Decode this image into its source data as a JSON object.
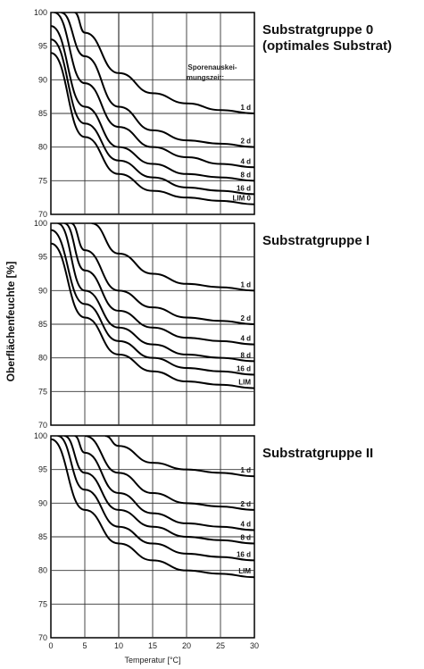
{
  "ylabel": "Oberflächenfeuchte [%]",
  "xlabel": "Temperatur [°C]",
  "chart_data": [
    {
      "type": "line",
      "title": "Substratgruppe 0",
      "subtitle": "(optimales Substrat)",
      "annotation": "Sporenauskei-mungszeit:",
      "xlim": [
        0,
        30
      ],
      "ylim": [
        70,
        100
      ],
      "x_ticks": [
        "0",
        "5",
        "10",
        "15",
        "20",
        "25",
        "30"
      ],
      "y_ticks": [
        "70",
        "75",
        "80",
        "85",
        "90",
        "95",
        "100"
      ],
      "series": [
        {
          "name": "1 d",
          "x": [
            3.5,
            5,
            10,
            15,
            20,
            25,
            30
          ],
          "y": [
            100,
            97,
            91,
            88,
            86.5,
            85.5,
            85
          ]
        },
        {
          "name": "2 d",
          "x": [
            1.5,
            5,
            10,
            15,
            20,
            25,
            30
          ],
          "y": [
            100,
            93.5,
            86,
            82.5,
            81,
            80.5,
            80
          ]
        },
        {
          "name": "4 d",
          "x": [
            0.5,
            5,
            10,
            15,
            20,
            25,
            30
          ],
          "y": [
            100,
            89.5,
            83,
            80,
            78.5,
            77.5,
            77
          ]
        },
        {
          "name": "8 d",
          "x": [
            0,
            5,
            10,
            15,
            20,
            25,
            30
          ],
          "y": [
            98,
            86,
            80,
            77.5,
            76,
            75.5,
            75
          ]
        },
        {
          "name": "16 d",
          "x": [
            0,
            5,
            10,
            15,
            20,
            25,
            30
          ],
          "y": [
            96,
            83.5,
            78,
            75.5,
            74,
            73.5,
            73
          ]
        },
        {
          "name": "LIM 0",
          "x": [
            0,
            5,
            10,
            15,
            20,
            25,
            30
          ],
          "y": [
            94,
            81.5,
            76,
            73.5,
            72.5,
            72,
            71.5
          ]
        }
      ]
    },
    {
      "type": "line",
      "title": "Substratgruppe I",
      "xlim": [
        0,
        30
      ],
      "ylim": [
        70,
        100
      ],
      "x_ticks": [
        "0",
        "5",
        "10",
        "15",
        "20",
        "25",
        "30"
      ],
      "y_ticks": [
        "70",
        "75",
        "80",
        "85",
        "90",
        "95",
        "100"
      ],
      "series": [
        {
          "name": "1 d",
          "x": [
            6,
            10,
            15,
            20,
            25,
            30
          ],
          "y": [
            100,
            95.5,
            92.5,
            91,
            90.5,
            90
          ]
        },
        {
          "name": "2 d",
          "x": [
            3,
            5,
            10,
            15,
            20,
            25,
            30
          ],
          "y": [
            100,
            96,
            90,
            87.5,
            86,
            85.5,
            85
          ]
        },
        {
          "name": "4 d",
          "x": [
            2,
            5,
            10,
            15,
            20,
            25,
            30
          ],
          "y": [
            100,
            93,
            87,
            84.5,
            83,
            82.5,
            82
          ]
        },
        {
          "name": "8 d",
          "x": [
            1,
            5,
            10,
            15,
            20,
            25,
            30
          ],
          "y": [
            100,
            90,
            84.5,
            82,
            80.5,
            80,
            79.5
          ]
        },
        {
          "name": "16 d",
          "x": [
            0,
            5,
            10,
            15,
            20,
            25,
            30
          ],
          "y": [
            99,
            88,
            82.5,
            80,
            78.5,
            78,
            77.5
          ]
        },
        {
          "name": "LIM",
          "x": [
            0,
            5,
            10,
            15,
            20,
            25,
            30
          ],
          "y": [
            97,
            86,
            80.5,
            78,
            76.5,
            76,
            75.5
          ]
        }
      ]
    },
    {
      "type": "line",
      "title": "Substratgruppe II",
      "xlim": [
        0,
        30
      ],
      "ylim": [
        70,
        100
      ],
      "x_ticks": [
        "0",
        "5",
        "10",
        "15",
        "20",
        "25",
        "30"
      ],
      "y_ticks": [
        "70",
        "75",
        "80",
        "85",
        "90",
        "95",
        "100"
      ],
      "series": [
        {
          "name": "1 d",
          "x": [
            8,
            10,
            15,
            20,
            25,
            30
          ],
          "y": [
            100,
            98.5,
            96,
            95,
            94.5,
            94
          ]
        },
        {
          "name": "2 d",
          "x": [
            5,
            10,
            15,
            20,
            25,
            30
          ],
          "y": [
            100,
            94.5,
            91.5,
            90,
            89.5,
            89
          ]
        },
        {
          "name": "4 d",
          "x": [
            3.5,
            5,
            10,
            15,
            20,
            25,
            30
          ],
          "y": [
            100,
            97.5,
            91.5,
            88.5,
            87,
            86.5,
            86
          ]
        },
        {
          "name": "8 d",
          "x": [
            2,
            5,
            10,
            15,
            20,
            25,
            30
          ],
          "y": [
            100,
            94.5,
            89,
            86.5,
            85,
            84.5,
            84
          ]
        },
        {
          "name": "16 d",
          "x": [
            1,
            5,
            10,
            15,
            20,
            25,
            30
          ],
          "y": [
            100,
            92,
            86.5,
            84,
            82.5,
            82,
            81.5
          ]
        },
        {
          "name": "LIM",
          "x": [
            0,
            5,
            10,
            15,
            20,
            25,
            30
          ],
          "y": [
            99.5,
            89,
            84,
            81.5,
            80,
            79.5,
            79
          ]
        }
      ]
    }
  ]
}
